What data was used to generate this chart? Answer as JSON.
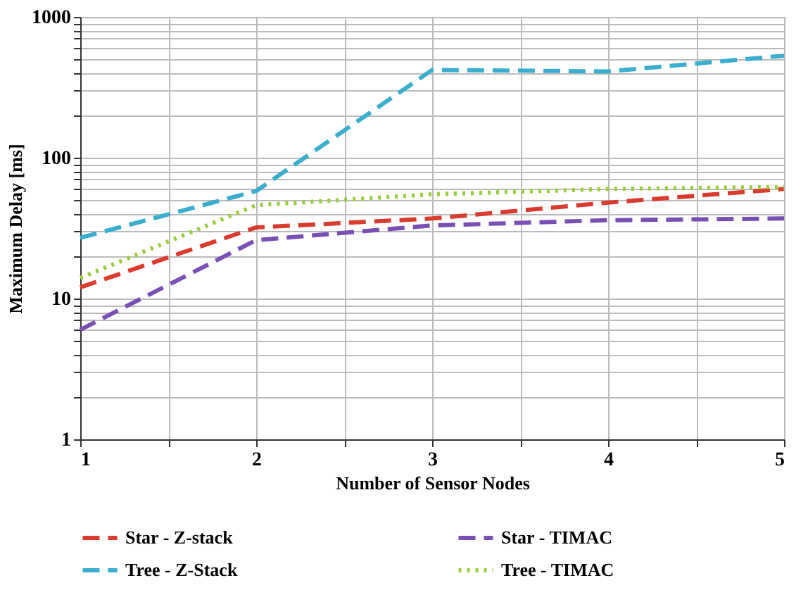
{
  "chart_data": {
    "type": "line",
    "xlabel": "Number of Sensor Nodes",
    "ylabel": "Maximum Delay [ms]",
    "x": [
      1,
      2,
      3,
      4,
      5
    ],
    "series": [
      {
        "name": "Star - Z-stack",
        "color": "#d93c2c",
        "line_style": "dashed",
        "values": [
          12,
          32,
          37,
          48,
          60
        ]
      },
      {
        "name": "Star - TIMAC",
        "color": "#7a4fb5",
        "line_style": "dashed",
        "values": [
          6,
          26,
          33,
          36,
          37
        ]
      },
      {
        "name": "Tree - Z-Stack",
        "color": "#3aaed0",
        "line_style": "dashed",
        "values": [
          27,
          58,
          420,
          410,
          530
        ]
      },
      {
        "name": "Tree - TIMAC",
        "color": "#9acd3c",
        "line_style": "dotted",
        "values": [
          14,
          46,
          55,
          60,
          62
        ]
      }
    ],
    "xlim": [
      1,
      5
    ],
    "xticks": [
      1,
      {
        "value": 1.5,
        "label": null
      },
      2,
      {
        "value": 2.5,
        "label": null
      },
      3,
      {
        "value": 3.5,
        "label": null
      },
      4,
      {
        "value": 4.5,
        "label": null
      },
      5
    ],
    "ylim": [
      1,
      1000
    ],
    "log": true,
    "yticks": [
      1,
      {
        "value": 2,
        "label": null
      },
      {
        "value": 3,
        "label": null
      },
      {
        "value": 4,
        "label": null
      },
      {
        "value": 5,
        "label": null
      },
      {
        "value": 6,
        "label": null
      },
      {
        "value": 7,
        "label": null
      },
      {
        "value": 8,
        "label": null
      },
      {
        "value": 9,
        "label": null
      },
      10,
      {
        "value": 20,
        "label": null
      },
      {
        "value": 30,
        "label": null
      },
      {
        "value": 40,
        "label": null
      },
      {
        "value": 50,
        "label": null
      },
      {
        "value": 60,
        "label": null
      },
      {
        "value": 70,
        "label": null
      },
      {
        "value": 80,
        "label": null
      },
      {
        "value": 90,
        "label": null
      },
      100,
      {
        "value": 200,
        "label": null
      },
      {
        "value": 300,
        "label": null
      },
      {
        "value": 400,
        "label": null
      },
      {
        "value": 500,
        "label": null
      },
      {
        "value": 600,
        "label": null
      },
      {
        "value": 700,
        "label": null
      },
      {
        "value": 800,
        "label": null
      },
      {
        "value": 900,
        "label": null
      },
      1000
    ],
    "grid": true,
    "legend": "bottom",
    "marker": "none"
  }
}
